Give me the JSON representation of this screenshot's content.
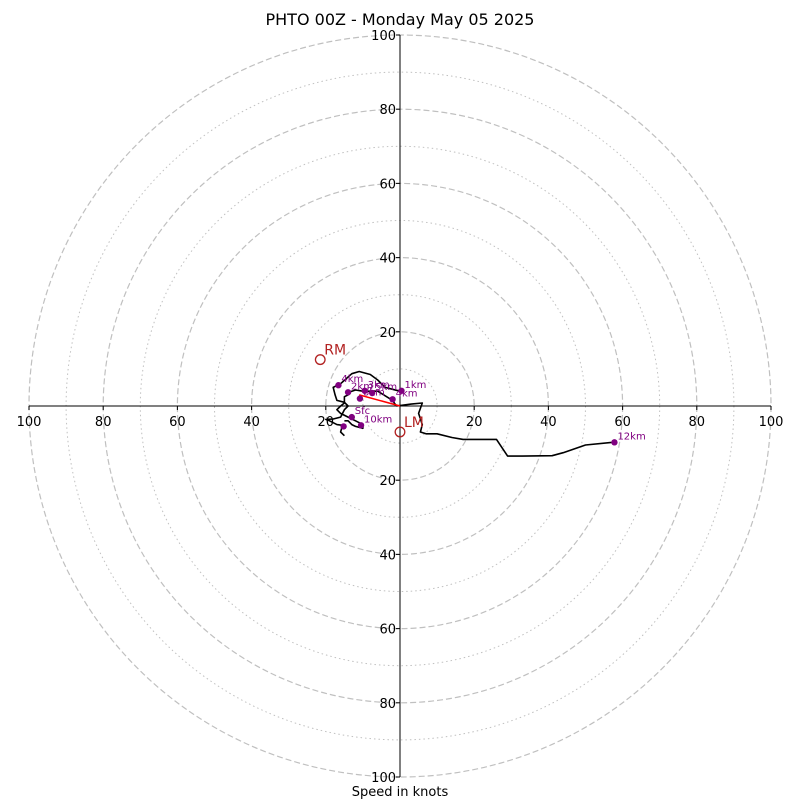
{
  "chart_data": {
    "type": "scatter",
    "title": "PHTO 00Z - Monday May 05 2025",
    "xlabel": "Speed in knots",
    "ylabel": "",
    "xlim": [
      -100,
      100
    ],
    "ylim": [
      -100,
      100
    ],
    "grid": true,
    "rings_dashed": [
      20,
      40,
      60,
      80,
      100
    ],
    "rings_dotted": [
      10,
      30,
      50,
      70,
      90
    ],
    "x_tick_labels": [
      "100",
      "80",
      "60",
      "40",
      "20",
      "20",
      "40",
      "60",
      "80",
      "100"
    ],
    "y_tick_labels": [
      "100",
      "80",
      "60",
      "40",
      "20",
      "20",
      "40",
      "60",
      "80",
      "100"
    ],
    "series": [
      {
        "values": [
          [
            -1,
            0
          ],
          [
            3,
            0.5
          ],
          [
            6,
            0.8
          ],
          [
            5,
            -2
          ],
          [
            6,
            -5
          ],
          [
            5.5,
            -7
          ],
          [
            7,
            -7.5
          ],
          [
            10,
            -7.5
          ],
          [
            14,
            -8.5
          ],
          [
            17,
            -9
          ],
          [
            22,
            -9
          ],
          [
            25,
            -9
          ],
          [
            26,
            -9
          ],
          [
            29,
            -13.5
          ],
          [
            33,
            -13.5
          ],
          [
            41,
            -13.4
          ],
          [
            44,
            -12.6
          ],
          [
            50,
            -10.5
          ],
          [
            57,
            -9.8
          ]
        ]
      },
      {
        "values": [
          [
            -1,
            0
          ],
          [
            -2,
            1.5
          ],
          [
            -6,
            4
          ],
          [
            -10,
            4
          ],
          [
            -12,
            4.3
          ],
          [
            -13,
            4
          ],
          [
            -14,
            3.5
          ],
          [
            -14,
            3
          ],
          [
            -15,
            2.5
          ],
          [
            -15,
            0.8
          ],
          [
            -16,
            0
          ],
          [
            -17,
            -1
          ],
          [
            -16,
            -2
          ],
          [
            -14,
            -3
          ],
          [
            -12,
            -4
          ],
          [
            -10,
            -5
          ],
          [
            -10,
            -6
          ],
          [
            -12,
            -5.5
          ],
          [
            -13,
            -5
          ],
          [
            -14,
            -4
          ],
          [
            -15,
            -4
          ]
        ]
      },
      {
        "values": [
          [
            0,
            4
          ],
          [
            -2,
            4.5
          ],
          [
            -4,
            5
          ],
          [
            -6,
            7
          ],
          [
            -8,
            8.5
          ],
          [
            -11,
            9.3
          ],
          [
            -13,
            8.7
          ],
          [
            -16,
            6
          ],
          [
            -18,
            5
          ],
          [
            -17.5,
            3
          ],
          [
            -17,
            1.5
          ],
          [
            -15,
            1
          ],
          [
            -14,
            0
          ],
          [
            -15,
            -1
          ],
          [
            -16,
            -3
          ],
          [
            -18,
            -3.5
          ],
          [
            -20,
            -3.6
          ],
          [
            -19,
            -4
          ],
          [
            -17,
            -5
          ],
          [
            -15.5,
            -5.2
          ],
          [
            -16,
            -7
          ],
          [
            -15,
            -8
          ]
        ]
      }
    ],
    "height_markers": [
      {
        "label": "1km",
        "x": 0.4,
        "y": 4.1
      },
      {
        "label": "12km",
        "x": 57.8,
        "y": -9.8
      },
      {
        "label": "4km",
        "x": -16.6,
        "y": 5.6
      },
      {
        "label": "2km",
        "x": -14,
        "y": 3.7
      },
      {
        "label": "Sfc",
        "x": -13,
        "y": -3
      },
      {
        "label": "10km",
        "x": -10.5,
        "y": -5.2
      },
      {
        "label": "3km",
        "x": -9.5,
        "y": 4.1
      },
      {
        "label": "6km",
        "x": -10.8,
        "y": 2
      },
      {
        "label": "5km",
        "x": -7.5,
        "y": 3.5
      },
      {
        "label": "4km",
        "x": -2,
        "y": 1.8
      },
      {
        "label": "",
        "x": -15.2,
        "y": -5.5
      }
    ],
    "storm_motion": [
      {
        "label": "RM",
        "x": -21.5,
        "y": 12.5
      },
      {
        "label": "LM",
        "x": 0,
        "y": -7
      }
    ],
    "mean_wind_vector": {
      "from": [
        -11,
        3
      ],
      "to": [
        0,
        0
      ]
    },
    "colors": {
      "hodograph": "#000000",
      "markers": "#800080",
      "storm_motion": "#b22222",
      "grid": "#c0c0c0",
      "mean_vector": "#ff0000"
    }
  }
}
